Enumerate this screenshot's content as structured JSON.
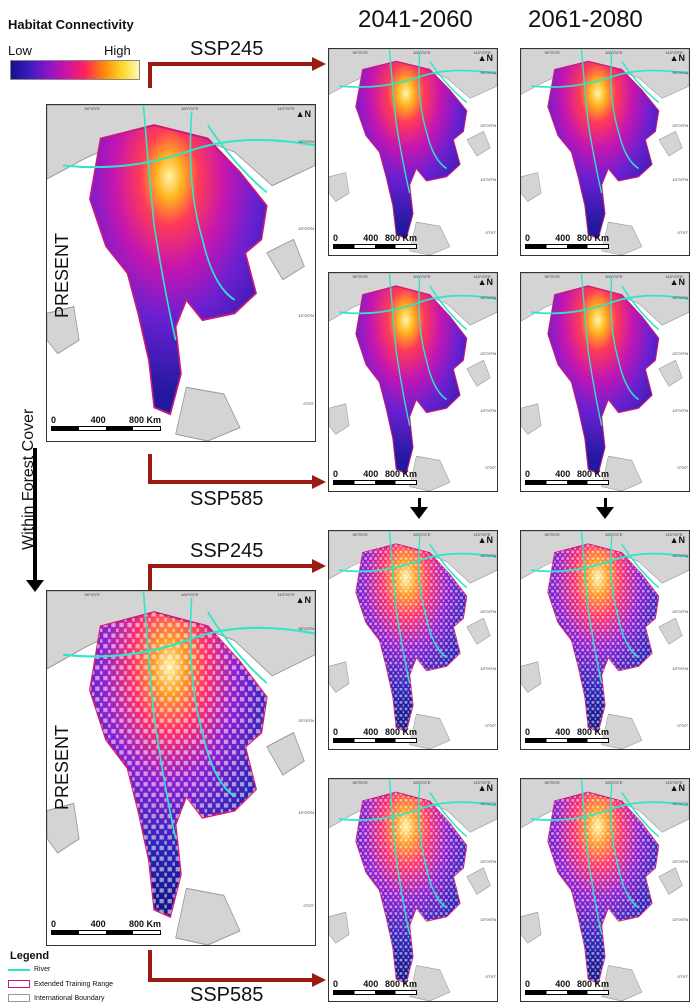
{
  "header": {
    "title": "Habitat Connectivity",
    "legend_low": "Low",
    "legend_high": "High",
    "periods": [
      "2041-2060",
      "2061-2080"
    ]
  },
  "colorbar_colors": [
    "#12128a",
    "#3b1cc0",
    "#8a14c8",
    "#cc13a8",
    "#ff2060",
    "#ff8010",
    "#ffd21e",
    "#fff9b0"
  ],
  "scenarios": {
    "top_ssp245": "SSP245",
    "top_ssp585": "SSP585",
    "bottom_ssp245": "SSP245",
    "bottom_ssp585": "SSP585"
  },
  "labels": {
    "present_top": "PRESENT",
    "present_bottom": "PRESENT",
    "within_forest_cover": "Within Forest Cover"
  },
  "scale": {
    "zero": "0",
    "mid": "400",
    "end": "800 Km"
  },
  "north_symbol": "N",
  "graticule": {
    "top_lon": [
      "90°0'0\"E",
      "100°0'0\"E",
      "110°0'0\"E"
    ],
    "side_lat": [
      "30°0'0\"N",
      "20°0'0\"N",
      "10°0'0\"N",
      "0°0'0\""
    ]
  },
  "legend": {
    "title": "Legend",
    "items": [
      "River",
      "Extended Training Range",
      "International Boundary"
    ]
  },
  "colors": {
    "river": "#2ee6c8",
    "range_outline": "#c8197a",
    "arrow_red": "#9b1b12",
    "land_grey": "#d4d4d4"
  }
}
